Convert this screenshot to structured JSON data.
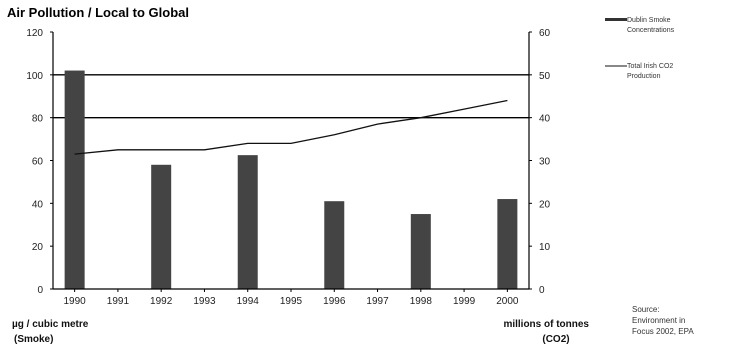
{
  "chart_data": {
    "type": "bar",
    "title": "Air Pollution / Local to Global",
    "categories": [
      "1990",
      "1991",
      "1992",
      "1993",
      "1994",
      "1995",
      "1996",
      "1997",
      "1998",
      "1999",
      "2000"
    ],
    "series": [
      {
        "name": "Dublin Smoke Concentrations",
        "kind": "bar",
        "axis": "left",
        "values": [
          102,
          null,
          58,
          null,
          62.5,
          null,
          41,
          null,
          35,
          null,
          42
        ]
      },
      {
        "name": "Total Irish CO2 Production",
        "kind": "line",
        "axis": "right",
        "values": [
          31.5,
          32.5,
          32.5,
          32.5,
          34,
          34,
          36,
          38.5,
          40,
          42,
          44
        ]
      }
    ],
    "ylabel_left": [
      "µg / cubic metre",
      "(Smoke)"
    ],
    "ylabel_right": [
      "millions of tonnes",
      "(CO2)"
    ],
    "ylim_left": [
      0,
      120
    ],
    "ylim_right": [
      0,
      60
    ],
    "yticks_left": [
      0,
      20,
      40,
      60,
      80,
      100,
      120
    ],
    "yticks_right": [
      0,
      10,
      20,
      30,
      40,
      50,
      60
    ],
    "reference_lines_left": [
      80,
      100
    ],
    "legend_position": "right",
    "colors": {
      "bar": "#444444",
      "line": "#111111",
      "axis": "#000000"
    },
    "source": [
      "Source:",
      "Environment in",
      "Focus 2002, EPA"
    ]
  }
}
